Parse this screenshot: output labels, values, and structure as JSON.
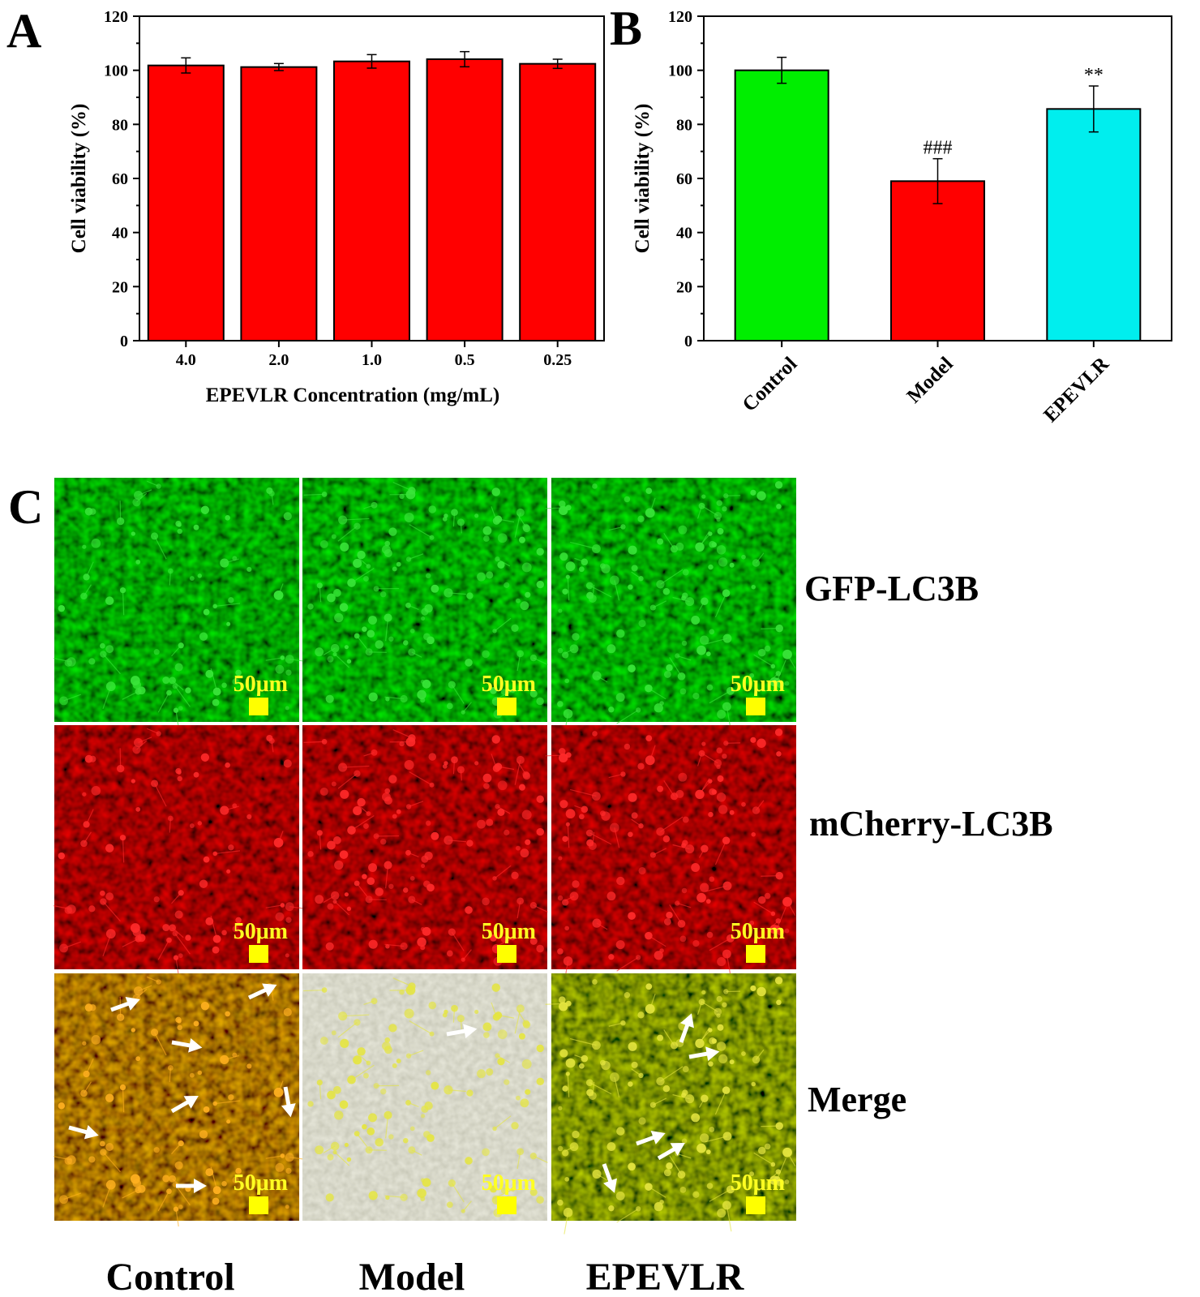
{
  "panels": {
    "a_letter": "A",
    "b_letter": "B",
    "c_letter": "C"
  },
  "chart_data": [
    {
      "type": "bar",
      "panel": "A",
      "title": "",
      "xlabel": "EPEVLR Concentration (mg/mL)",
      "ylabel": "Cell viability (%)",
      "ylim": [
        0,
        120
      ],
      "yticks": [
        0,
        20,
        40,
        60,
        80,
        100,
        120
      ],
      "categories": [
        "4.0",
        "2.0",
        "1.0",
        "0.5",
        "0.25"
      ],
      "values": [
        101.8,
        101.2,
        103.3,
        104.1,
        102.4
      ],
      "errors": [
        2.8,
        1.3,
        2.5,
        2.8,
        1.7
      ],
      "colors": [
        "#ff0000",
        "#ff0000",
        "#ff0000",
        "#ff0000",
        "#ff0000"
      ],
      "annotations": [
        "",
        "",
        "",
        "",
        ""
      ],
      "grid": false,
      "legend": "none"
    },
    {
      "type": "bar",
      "panel": "B",
      "title": "",
      "xlabel": "",
      "ylabel": "Cell viability (%)",
      "ylim": [
        0,
        120
      ],
      "yticks": [
        0,
        20,
        40,
        60,
        80,
        100,
        120
      ],
      "categories": [
        "Control",
        "Model",
        "EPEVLR"
      ],
      "values": [
        100,
        59,
        85.7
      ],
      "errors": [
        4.8,
        8.3,
        8.5
      ],
      "colors": [
        "#00ee00",
        "#ff0000",
        "#00eeee"
      ],
      "annotations": [
        "",
        "###",
        "**"
      ],
      "grid": false,
      "legend": "none"
    }
  ],
  "micrographs": {
    "rows": [
      "GFP-LC3B",
      "mCherry-LC3B",
      "Merge"
    ],
    "columns": [
      "Control",
      "Model",
      "EPEVLR"
    ],
    "scale_bar": "50μm"
  }
}
